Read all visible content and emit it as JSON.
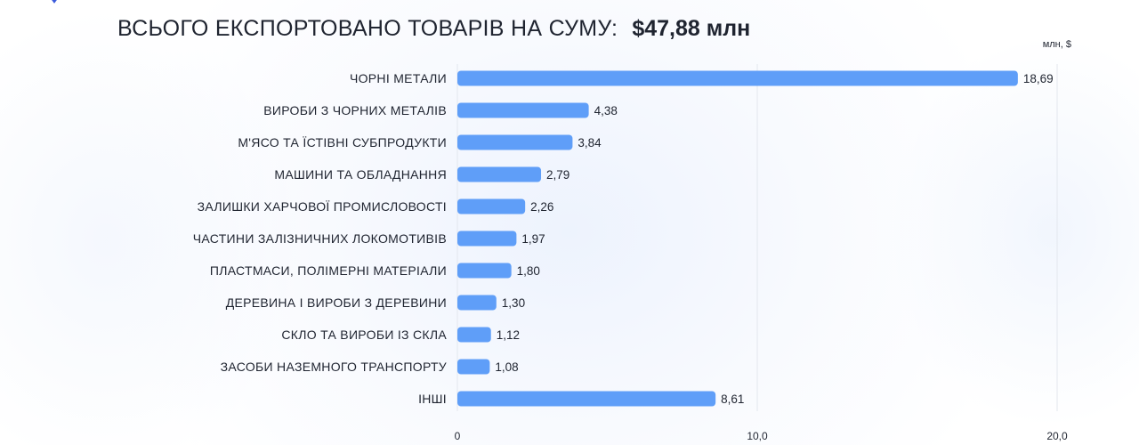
{
  "header": {
    "title": "ВСЬОГО ЕКСПОРТОВАНО ТОВАРІВ НА СУМУ:",
    "total": "$47,88 млн",
    "unit": "млн, $"
  },
  "colors": {
    "bar": "#5f9ef8",
    "grid": "#e3e7ee",
    "text": "#1f2430"
  },
  "chart_data": {
    "type": "bar",
    "orientation": "horizontal",
    "categories": [
      "ЧОРНІ МЕТАЛИ",
      "ВИРОБИ З ЧОРНИХ МЕТАЛІВ",
      "М'ЯСО ТА ЇСТІВНІ СУБПРОДУКТИ",
      "МАШИНИ ТА ОБЛАДНАННЯ",
      "ЗАЛИШКИ ХАРЧОВОЇ ПРОМИСЛОВОСТІ",
      "ЧАСТИНИ ЗАЛІЗНИЧНИХ ЛОКОМОТИВІВ",
      "ПЛАСТМАСИ, ПОЛІМЕРНІ МАТЕРІАЛИ",
      "ДЕРЕВИНА І ВИРОБИ З ДЕРЕВИНИ",
      "СКЛО ТА ВИРОБИ ІЗ СКЛА",
      "ЗАСОБИ НАЗЕМНОГО ТРАНСПОРТУ",
      "ІНШІ"
    ],
    "values": [
      18.69,
      4.38,
      3.84,
      2.79,
      2.26,
      1.97,
      1.8,
      1.3,
      1.12,
      1.08,
      8.61
    ],
    "value_labels": [
      "18,69",
      "4,38",
      "3,84",
      "2,79",
      "2,26",
      "1,97",
      "1,80",
      "1,30",
      "1,12",
      "1,08",
      "8,61"
    ],
    "xlim": [
      0,
      20
    ],
    "x_ticks": [
      0,
      10,
      20
    ],
    "x_tick_labels": [
      "0",
      "10,0",
      "20,0"
    ],
    "grid": true
  }
}
